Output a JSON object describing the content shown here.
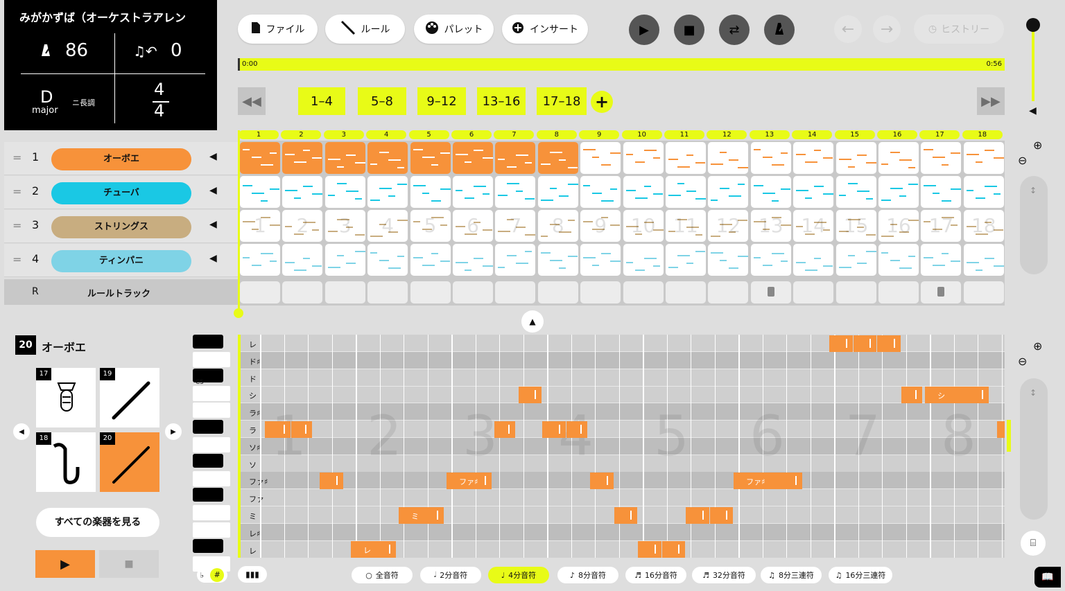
{
  "song": {
    "title": "みがかずば（オーケストラアレン",
    "tempo": "86",
    "transpose": "0",
    "key_letter": "D",
    "key_mode": "major",
    "key_jp": "ニ長調",
    "ts_top": "4",
    "ts_bottom": "4"
  },
  "toolbar": {
    "file": "ファイル",
    "rule": "ルール",
    "palette": "パレット",
    "insert": "インサート",
    "history": "ヒストリー"
  },
  "timeline": {
    "start": "0:00",
    "end": "0:56"
  },
  "ranges": [
    "1–4",
    "5–8",
    "9–12",
    "13–16",
    "17–18"
  ],
  "measures": [
    "1",
    "2",
    "3",
    "4",
    "5",
    "6",
    "7",
    "8",
    "9",
    "10",
    "11",
    "12",
    "13",
    "14",
    "15",
    "16",
    "17",
    "18"
  ],
  "tracks": [
    {
      "num": "1",
      "name": "オーボエ",
      "color": "#f7923a"
    },
    {
      "num": "2",
      "name": "チューバ",
      "color": "#1ac8e4"
    },
    {
      "num": "3",
      "name": "ストリングス",
      "color": "#c8ad80"
    },
    {
      "num": "4",
      "name": "ティンパニ",
      "color": "#7fd3e6"
    }
  ],
  "rule_track": {
    "r": "R",
    "name": "ルールトラック"
  },
  "instrument_panel": {
    "current_num": "20",
    "current_name": "オーボエ",
    "cards": [
      {
        "num": "17",
        "icon": "tuba-icon"
      },
      {
        "num": "19",
        "icon": "clarinet-icon"
      },
      {
        "num": "18",
        "icon": "saxophone-icon"
      },
      {
        "num": "20",
        "icon": "oboe-icon"
      }
    ],
    "all_button": "すべての楽器を見る"
  },
  "piano_roll": {
    "c5_label": "C5",
    "rows": [
      "レ",
      "ド♯",
      "ド",
      "シ",
      "ラ♯",
      "ラ",
      "ソ♯",
      "ソ",
      "ファ♯",
      "ファ",
      "ミ",
      "レ♯",
      "レ"
    ],
    "beat_numbers": [
      "1",
      "2",
      "3",
      "4",
      "5",
      "6",
      "7",
      "8"
    ],
    "note_labels": {
      "fs": "ファ♯",
      "mi": "ミ",
      "si": "シ",
      "re": "レ"
    }
  },
  "note_lengths": [
    {
      "label": "全音符",
      "icon": "whole-note-icon"
    },
    {
      "label": "2分音符",
      "icon": "half-note-icon"
    },
    {
      "label": "4分音符",
      "icon": "quarter-note-icon"
    },
    {
      "label": "8分音符",
      "icon": "eighth-note-icon"
    },
    {
      "label": "16分音符",
      "icon": "sixteenth-note-icon"
    },
    {
      "label": "32分音符",
      "icon": "thirty-second-note-icon"
    },
    {
      "label": "8分三連符",
      "icon": "eighth-triplet-icon"
    },
    {
      "label": "16分三連符",
      "icon": "sixteenth-triplet-icon"
    }
  ],
  "selected_note_length": "4分音符",
  "accidental": {
    "flat": "♭",
    "sharp": "#"
  },
  "colors": {
    "accent": "#e8fb17",
    "oboe": "#f7923a",
    "tuba": "#1ac8e4",
    "strings": "#c8ad80",
    "timpani": "#7fd3e6"
  }
}
